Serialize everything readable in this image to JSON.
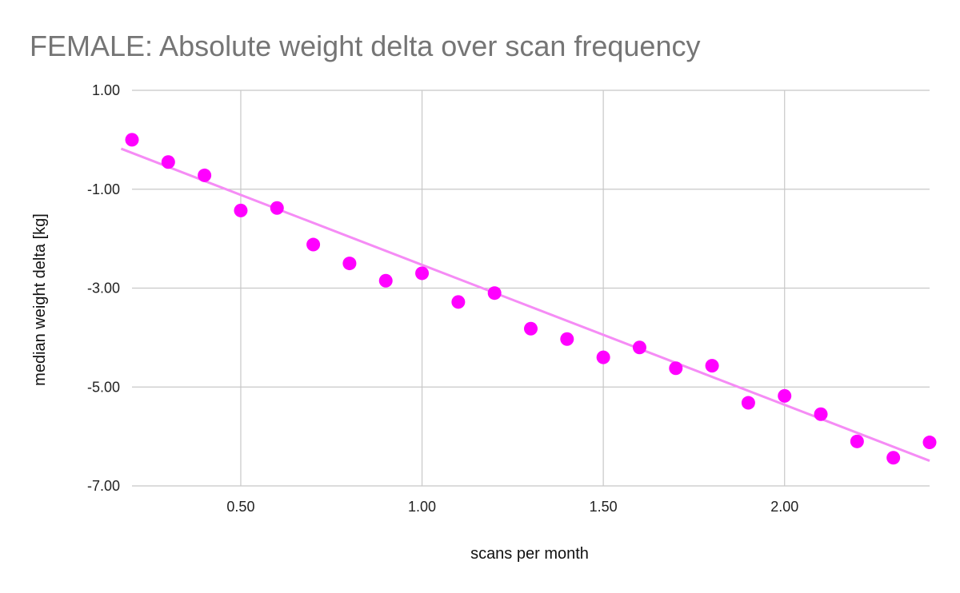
{
  "chart_data": {
    "type": "scatter",
    "title": "FEMALE: Absolute weight delta over scan frequency",
    "xlabel": "scans per month",
    "ylabel": "median weight delta [kg]",
    "xlim": [
      0.2,
      2.4
    ],
    "ylim": [
      -7,
      1
    ],
    "x_ticks": [
      0.5,
      1.0,
      1.5,
      2.0
    ],
    "x_tick_labels": [
      "0.50",
      "1.00",
      "1.50",
      "2.00"
    ],
    "y_ticks": [
      1,
      -1,
      -3,
      -5,
      -7
    ],
    "y_tick_labels": [
      "1.00",
      "-1.00",
      "-3.00",
      "-5.00",
      "-7.00"
    ],
    "grid": true,
    "legend": "none",
    "series": [
      {
        "x": [
          0.2,
          0.3,
          0.4,
          0.5,
          0.6,
          0.7,
          0.8,
          0.9,
          1.0,
          1.1,
          1.2,
          1.3,
          1.4,
          1.5,
          1.6,
          1.7,
          1.8,
          1.9,
          2.0,
          2.1,
          2.2,
          2.3,
          2.4
        ],
        "y": [
          0.0,
          -0.45,
          -0.72,
          -1.43,
          -1.38,
          -2.12,
          -2.5,
          -2.85,
          -2.7,
          -3.28,
          -3.1,
          -3.82,
          -4.03,
          -4.4,
          -4.2,
          -4.62,
          -4.57,
          -5.32,
          -5.18,
          -5.55,
          -6.1,
          -6.43,
          -6.12
        ],
        "color": "#ff00ff"
      }
    ],
    "trendline": {
      "type": "linear",
      "slope": -2.83,
      "intercept": 0.3,
      "color": "#f58cf5"
    }
  }
}
